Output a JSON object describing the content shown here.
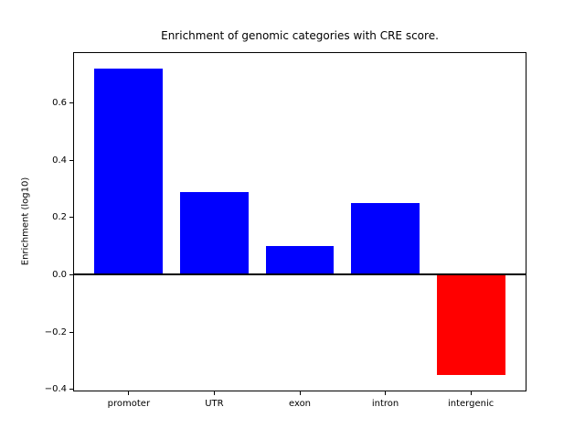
{
  "figure": {
    "background_color": "#ffffff",
    "axis_color": "#000000"
  },
  "chart_data": {
    "type": "bar",
    "title": "Enrichment of genomic categories with CRE score.",
    "xlabel": "",
    "ylabel": "Enrichment (log10)",
    "categories": [
      "promoter",
      "UTR",
      "exon",
      "intron",
      "intergenic"
    ],
    "values": [
      0.72,
      0.29,
      0.1,
      0.25,
      -0.35
    ],
    "positive_color": "#0000ff",
    "negative_color": "#ff0000",
    "bar_width": 0.8,
    "xlim": [
      -0.64,
      4.64
    ],
    "ylim": [
      -0.4035,
      0.7735
    ],
    "yticks": [
      -0.4,
      -0.2,
      0.0,
      0.2,
      0.4,
      0.6
    ],
    "ytick_labels": [
      "−0.4",
      "−0.2",
      "0.0",
      "0.2",
      "0.4",
      "0.6"
    ],
    "zero_line": true,
    "grid": false,
    "legend": null
  }
}
